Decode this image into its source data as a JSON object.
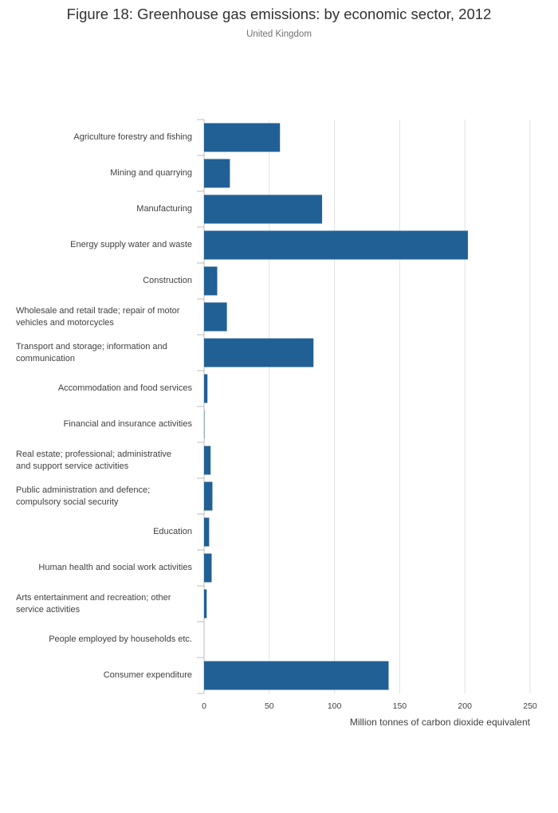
{
  "chart_data": {
    "type": "bar",
    "orientation": "horizontal",
    "title": "Figure 18: Greenhouse gas emissions: by economic sector, 2012",
    "subtitle": "United Kingdom",
    "xlabel": "Million tonnes of carbon dioxide equivalent",
    "ylabel": "",
    "xlim": [
      0,
      250
    ],
    "xticks": [
      0,
      50,
      100,
      150,
      200,
      250
    ],
    "grid": true,
    "bar_color": "#206095",
    "categories": [
      "Agriculture forestry and fishing",
      "Mining and quarrying",
      "Manufacturing",
      "Energy supply water and waste",
      "Construction",
      "Wholesale and retail trade; repair of motor vehicles and motorcycles",
      "Transport and storage; information and communication",
      "Accommodation and food services",
      "Financial and insurance activities",
      "Real estate; professional; administrative and support service activities",
      "Public administration and defence; compulsory social security",
      "Education",
      "Human health and social work activities",
      "Arts entertainment and recreation; other service activities",
      "People employed by households etc.",
      "Consumer expenditure"
    ],
    "category_lines": [
      [
        "Agriculture forestry and fishing"
      ],
      [
        "Mining and quarrying"
      ],
      [
        "Manufacturing"
      ],
      [
        "Energy supply water and waste"
      ],
      [
        "Construction"
      ],
      [
        "Wholesale and retail trade; repair of motor",
        "vehicles and motorcycles"
      ],
      [
        "Transport and storage; information and",
        "communication"
      ],
      [
        "Accommodation and food services"
      ],
      [
        "Financial and insurance activities"
      ],
      [
        "Real estate; professional; administrative",
        "and support service activities"
      ],
      [
        "Public administration and defence;",
        "compulsory social security"
      ],
      [
        "Education"
      ],
      [
        "Human health and social work activities"
      ],
      [
        "Arts entertainment and recreation; other",
        "service activities"
      ],
      [
        "People employed by households etc."
      ],
      [
        "Consumer expenditure"
      ]
    ],
    "values": [
      58.2,
      19.8,
      90.5,
      202.3,
      10.1,
      17.5,
      83.9,
      2.6,
      0.3,
      5.0,
      6.4,
      3.9,
      5.8,
      2.0,
      0.0,
      141.5
    ]
  }
}
